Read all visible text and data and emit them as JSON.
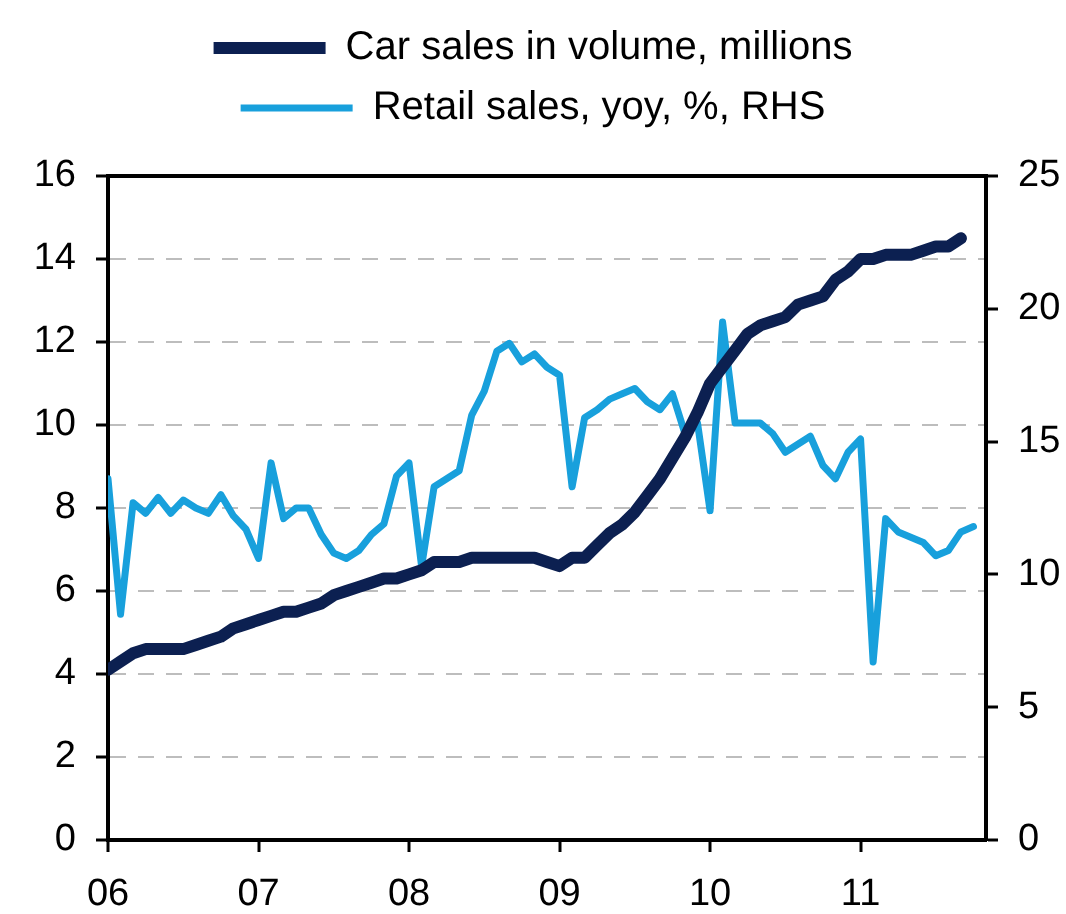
{
  "chart_data": {
    "type": "line",
    "x": [
      "2006-01",
      "2006-02",
      "2006-03",
      "2006-04",
      "2006-05",
      "2006-06",
      "2006-07",
      "2006-08",
      "2006-09",
      "2006-10",
      "2006-11",
      "2006-12",
      "2007-01",
      "2007-02",
      "2007-03",
      "2007-04",
      "2007-05",
      "2007-06",
      "2007-07",
      "2007-08",
      "2007-09",
      "2007-10",
      "2007-11",
      "2007-12",
      "2008-01",
      "2008-02",
      "2008-03",
      "2008-04",
      "2008-05",
      "2008-06",
      "2008-07",
      "2008-08",
      "2008-09",
      "2008-10",
      "2008-11",
      "2008-12",
      "2009-01",
      "2009-02",
      "2009-03",
      "2009-04",
      "2009-05",
      "2009-06",
      "2009-07",
      "2009-08",
      "2009-09",
      "2009-10",
      "2009-11",
      "2009-12",
      "2010-01",
      "2010-02",
      "2010-03",
      "2010-04",
      "2010-05",
      "2010-06",
      "2010-07",
      "2010-08",
      "2010-09",
      "2010-10",
      "2010-11",
      "2010-12",
      "2011-01",
      "2011-02",
      "2011-03",
      "2011-04",
      "2011-05",
      "2011-06",
      "2011-07",
      "2011-08",
      "2011-09",
      "2011-10"
    ],
    "series": [
      {
        "name": "Car sales in volume, millions",
        "color": "#0c2051",
        "values": [
          4.1,
          4.3,
          4.5,
          4.6,
          4.6,
          4.6,
          4.6,
          4.7,
          4.8,
          4.9,
          5.1,
          5.2,
          5.3,
          5.4,
          5.5,
          5.5,
          5.6,
          5.7,
          5.9,
          6.0,
          6.1,
          6.2,
          6.3,
          6.3,
          6.4,
          6.5,
          6.7,
          6.7,
          6.7,
          6.8,
          6.8,
          6.8,
          6.8,
          6.8,
          6.8,
          6.7,
          6.6,
          6.8,
          6.8,
          7.1,
          7.4,
          7.6,
          7.9,
          8.3,
          8.7,
          9.2,
          9.7,
          10.3,
          11.0,
          11.4,
          11.8,
          12.2,
          12.4,
          12.5,
          12.6,
          12.9,
          13.0,
          13.1,
          13.5,
          13.7,
          14.0,
          14.0,
          14.1,
          14.1,
          14.1,
          14.2,
          14.3,
          14.3,
          14.5,
          null
        ]
      },
      {
        "name": "Retail sales, yoy, %, RHS",
        "color": "#18a0dc",
        "axis": "y2",
        "values": [
          13.6,
          8.5,
          12.7,
          12.3,
          12.9,
          12.3,
          12.8,
          12.5,
          12.3,
          13.0,
          12.2,
          11.7,
          10.6,
          14.2,
          12.1,
          12.5,
          12.5,
          11.5,
          10.8,
          10.6,
          10.9,
          11.5,
          11.9,
          13.7,
          14.2,
          10.3,
          13.3,
          13.6,
          13.9,
          16.0,
          16.9,
          18.4,
          18.7,
          18.0,
          18.3,
          17.8,
          17.5,
          13.3,
          15.9,
          16.2,
          16.6,
          16.8,
          17.0,
          16.5,
          16.2,
          16.8,
          15.3,
          15.7,
          12.4,
          19.5,
          15.7,
          15.7,
          15.7,
          15.3,
          14.6,
          14.9,
          15.2,
          14.1,
          13.6,
          14.6,
          15.1,
          6.7,
          12.1,
          11.6,
          11.4,
          11.2,
          10.7,
          10.9,
          11.6,
          11.8
        ]
      }
    ],
    "xlim": [
      "2006-01",
      "2011-11"
    ],
    "xticks": [
      {
        "value": "2006-01",
        "label": "06"
      },
      {
        "value": "2007-01",
        "label": "07"
      },
      {
        "value": "2008-01",
        "label": "08"
      },
      {
        "value": "2009-01",
        "label": "09"
      },
      {
        "value": "2010-01",
        "label": "10"
      },
      {
        "value": "2011-01",
        "label": "11"
      }
    ],
    "ylim": [
      0,
      16
    ],
    "yticks": [
      0,
      2,
      4,
      6,
      8,
      10,
      12,
      14,
      16
    ],
    "y2lim": [
      0,
      25
    ],
    "y2ticks": [
      0,
      5,
      10,
      15,
      20,
      25
    ],
    "grid": "y",
    "legend": "top",
    "marker": "none",
    "line_style": "solid"
  }
}
